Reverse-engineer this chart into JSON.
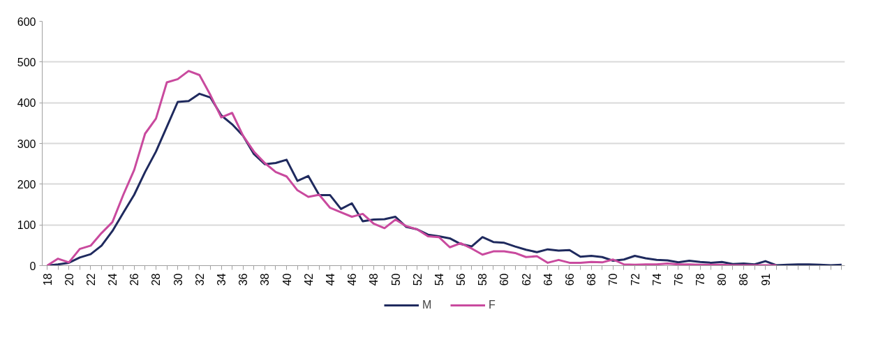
{
  "chart_data": {
    "type": "line",
    "categories": [
      "18",
      null,
      "20",
      null,
      "22",
      null,
      "24",
      null,
      "26",
      null,
      "28",
      null,
      "30",
      null,
      "32",
      null,
      "34",
      null,
      "36",
      null,
      "38",
      null,
      "40",
      null,
      "42",
      null,
      "44",
      null,
      "46",
      null,
      "48",
      null,
      "50",
      null,
      "52",
      null,
      "54",
      null,
      "56",
      null,
      "58",
      null,
      "60",
      null,
      "62",
      null,
      "64",
      null,
      "66",
      null,
      "68",
      null,
      "70",
      null,
      "72",
      null,
      "74",
      null,
      "76",
      null,
      "78",
      null,
      "80",
      null,
      "86",
      null,
      "91",
      null,
      null,
      null,
      null,
      null,
      null,
      null
    ],
    "series": [
      {
        "name": "M",
        "color": "#1f2a5e",
        "values": [
          0,
          3,
          7,
          20,
          28,
          49,
          85,
          130,
          174,
          230,
          280,
          341,
          402,
          404,
          422,
          413,
          369,
          347,
          319,
          274,
          249,
          252,
          260,
          208,
          220,
          173,
          173,
          139,
          153,
          109,
          113,
          114,
          120,
          95,
          89,
          76,
          72,
          67,
          53,
          47,
          70,
          58,
          56,
          47,
          39,
          33,
          40,
          37,
          38,
          22,
          24,
          21,
          12,
          15,
          24,
          18,
          14,
          13,
          8,
          12,
          9,
          7,
          9,
          4,
          5,
          3,
          11,
          1,
          2,
          3,
          3,
          2,
          1,
          2
        ]
      },
      {
        "name": "F",
        "color": "#c94a9e",
        "values": [
          0,
          17,
          8,
          41,
          49,
          80,
          107,
          174,
          235,
          324,
          361,
          450,
          458,
          478,
          468,
          419,
          364,
          375,
          319,
          280,
          252,
          230,
          219,
          185,
          169,
          174,
          142,
          131,
          120,
          127,
          103,
          92,
          113,
          97,
          89,
          72,
          70,
          45,
          55,
          42,
          27,
          35,
          35,
          31,
          21,
          23,
          7,
          14,
          7,
          7,
          9,
          8,
          15,
          3,
          2,
          3,
          3,
          5,
          3,
          3,
          2,
          2,
          2,
          1,
          1,
          1,
          1,
          1,
          null,
          null,
          null,
          null,
          null,
          null
        ]
      }
    ],
    "ylim": [
      0,
      600
    ],
    "yticks": [
      0,
      100,
      200,
      300,
      400,
      500,
      600
    ],
    "grid": "y",
    "legend": "bottom"
  }
}
